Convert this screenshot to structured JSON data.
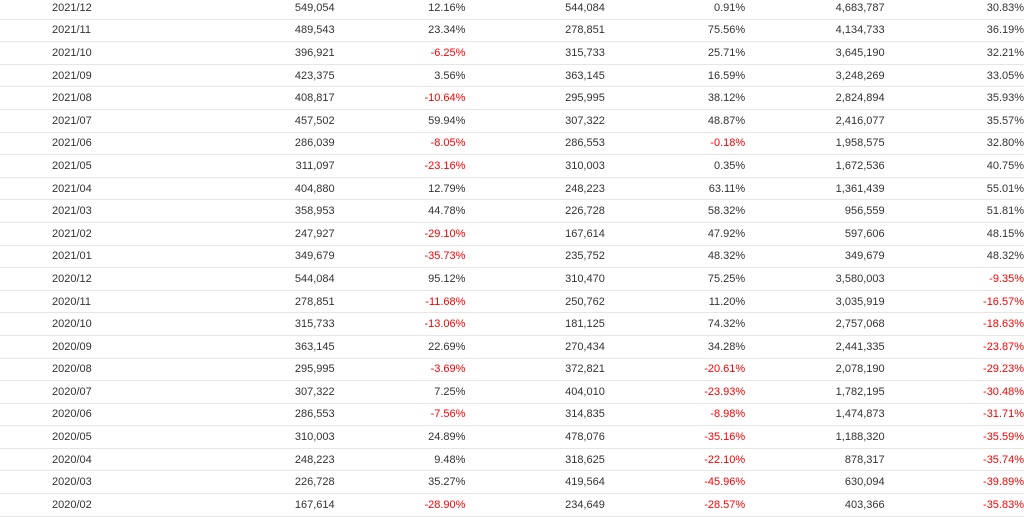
{
  "colors": {
    "negative": "#ff0000",
    "text": "#333333",
    "border": "#e6e6e6"
  },
  "rows": [
    [
      "2021/12",
      "549,054",
      "12.16%",
      "544,084",
      "0.91%",
      "4,683,787",
      "30.83%"
    ],
    [
      "2021/11",
      "489,543",
      "23.34%",
      "278,851",
      "75.56%",
      "4,134,733",
      "36.19%"
    ],
    [
      "2021/10",
      "396,921",
      "-6.25%",
      "315,733",
      "25.71%",
      "3,645,190",
      "32.21%"
    ],
    [
      "2021/09",
      "423,375",
      "3.56%",
      "363,145",
      "16.59%",
      "3,248,269",
      "33.05%"
    ],
    [
      "2021/08",
      "408,817",
      "-10.64%",
      "295,995",
      "38.12%",
      "2,824,894",
      "35.93%"
    ],
    [
      "2021/07",
      "457,502",
      "59.94%",
      "307,322",
      "48.87%",
      "2,416,077",
      "35.57%"
    ],
    [
      "2021/06",
      "286,039",
      "-8.05%",
      "286,553",
      "-0.18%",
      "1,958,575",
      "32.80%"
    ],
    [
      "2021/05",
      "311,097",
      "-23.16%",
      "310,003",
      "0.35%",
      "1,672,536",
      "40.75%"
    ],
    [
      "2021/04",
      "404,880",
      "12.79%",
      "248,223",
      "63.11%",
      "1,361,439",
      "55.01%"
    ],
    [
      "2021/03",
      "358,953",
      "44.78%",
      "226,728",
      "58.32%",
      "956,559",
      "51.81%"
    ],
    [
      "2021/02",
      "247,927",
      "-29.10%",
      "167,614",
      "47.92%",
      "597,606",
      "48.15%"
    ],
    [
      "2021/01",
      "349,679",
      "-35.73%",
      "235,752",
      "48.32%",
      "349,679",
      "48.32%"
    ],
    [
      "2020/12",
      "544,084",
      "95.12%",
      "310,470",
      "75.25%",
      "3,580,003",
      "-9.35%"
    ],
    [
      "2020/11",
      "278,851",
      "-11.68%",
      "250,762",
      "11.20%",
      "3,035,919",
      "-16.57%"
    ],
    [
      "2020/10",
      "315,733",
      "-13.06%",
      "181,125",
      "74.32%",
      "2,757,068",
      "-18.63%"
    ],
    [
      "2020/09",
      "363,145",
      "22.69%",
      "270,434",
      "34.28%",
      "2,441,335",
      "-23.87%"
    ],
    [
      "2020/08",
      "295,995",
      "-3.69%",
      "372,821",
      "-20.61%",
      "2,078,190",
      "-29.23%"
    ],
    [
      "2020/07",
      "307,322",
      "7.25%",
      "404,010",
      "-23.93%",
      "1,782,195",
      "-30.48%"
    ],
    [
      "2020/06",
      "286,553",
      "-7.56%",
      "314,835",
      "-8.98%",
      "1,474,873",
      "-31.71%"
    ],
    [
      "2020/05",
      "310,003",
      "24.89%",
      "478,076",
      "-35.16%",
      "1,188,320",
      "-35.59%"
    ],
    [
      "2020/04",
      "248,223",
      "9.48%",
      "318,625",
      "-22.10%",
      "878,317",
      "-35.74%"
    ],
    [
      "2020/03",
      "226,728",
      "35.27%",
      "419,564",
      "-45.96%",
      "630,094",
      "-39.89%"
    ],
    [
      "2020/02",
      "167,614",
      "-28.90%",
      "234,649",
      "-28.57%",
      "403,366",
      "-35.83%"
    ]
  ]
}
